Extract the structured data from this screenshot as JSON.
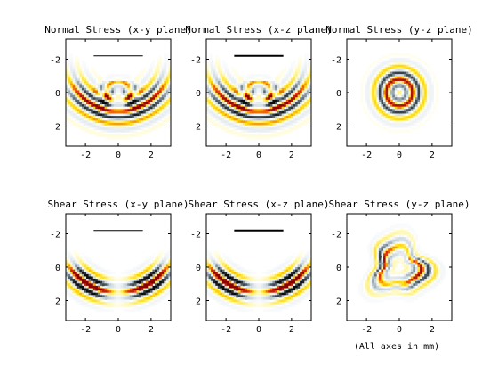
{
  "chart_data": {
    "type": "heatmap",
    "colors": {
      "positive_high": "#8b0000",
      "positive_mid": "#e83a10",
      "positive_low": "#ffd800",
      "positive_faint": "#fff7a8",
      "negative_high": "#0c0c0c",
      "negative_mid": "#4f5f6a",
      "negative_low": "#c5d2da",
      "background": "#ffffff"
    },
    "panels": [
      {
        "title": "Normal Stress (x-y plane)",
        "xlim": [
          -3.2,
          3.2
        ],
        "ylim": [
          -3.2,
          3.2
        ],
        "yreversed": true,
        "xticks": [
          "-2",
          "0",
          "2"
        ],
        "yticks": [
          "-2",
          "0",
          "2"
        ],
        "transducer_bar": {
          "x": [
            -1.5,
            1.5
          ],
          "y": -2.2,
          "weight": "thin"
        },
        "pattern": "arc_fan_normal"
      },
      {
        "title": "Normal Stress  (x-z plane)",
        "xlim": [
          -3.2,
          3.2
        ],
        "ylim": [
          -3.2,
          3.2
        ],
        "yreversed": true,
        "xticks": [
          "-2",
          "0",
          "2"
        ],
        "yticks": [
          "-2",
          "0",
          "2"
        ],
        "transducer_bar": {
          "x": [
            -1.5,
            1.5
          ],
          "y": -2.2,
          "weight": "thick"
        },
        "pattern": "arc_fan_normal"
      },
      {
        "title": "Normal Stress  (y-z plane)",
        "xlim": [
          -3.2,
          3.2
        ],
        "ylim": [
          -3.2,
          3.2
        ],
        "yreversed": true,
        "xticks": [
          "-2",
          "0",
          "2"
        ],
        "yticks": [
          "-2",
          "0",
          "2"
        ],
        "transducer_bar": null,
        "pattern": "rings"
      },
      {
        "title": "Shear Stress (x-y plane)",
        "xlim": [
          -3.2,
          3.2
        ],
        "ylim": [
          -3.2,
          3.2
        ],
        "yreversed": true,
        "xticks": [
          "-2",
          "0",
          "2"
        ],
        "yticks": [
          "-2",
          "0",
          "2"
        ],
        "transducer_bar": {
          "x": [
            -1.5,
            1.5
          ],
          "y": -2.2,
          "weight": "thin"
        },
        "pattern": "arc_fan_shear"
      },
      {
        "title": "Shear Stress (x-z plane)",
        "xlim": [
          -3.2,
          3.2
        ],
        "ylim": [
          -3.2,
          3.2
        ],
        "yreversed": true,
        "xticks": [
          "-2",
          "0",
          "2"
        ],
        "yticks": [
          "-2",
          "0",
          "2"
        ],
        "transducer_bar": {
          "x": [
            -1.5,
            1.5
          ],
          "y": -2.2,
          "weight": "thick"
        },
        "pattern": "arc_fan_shear"
      },
      {
        "title": "Shear Stress (y-z plane)",
        "xlim": [
          -3.2,
          3.2
        ],
        "ylim": [
          -3.2,
          3.2
        ],
        "yreversed": true,
        "xticks": [
          "-2",
          "0",
          "2"
        ],
        "yticks": [
          "-2",
          "0",
          "2"
        ],
        "transducer_bar": null,
        "pattern": "irregular_ring"
      }
    ],
    "annotation": "(All axes in mm)"
  }
}
